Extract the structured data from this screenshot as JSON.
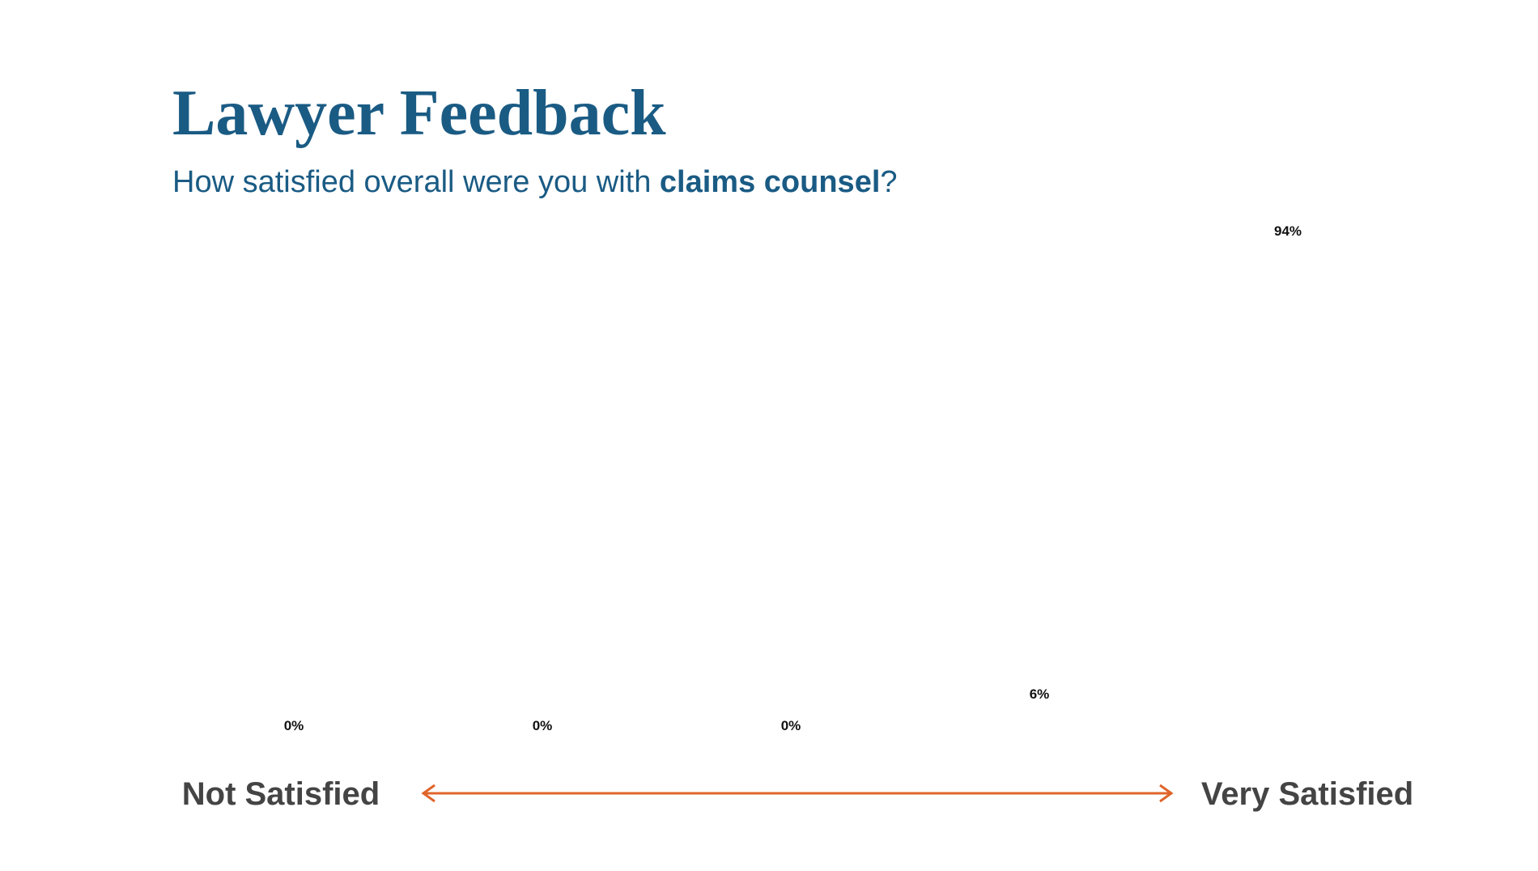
{
  "chart_data": {
    "type": "bar",
    "title": "Lawyer Feedback",
    "subtitle": [
      "How satisfied overall were you with",
      "claims counsel",
      "?"
    ],
    "categories": [
      null,
      null,
      null,
      null,
      null
    ],
    "values": [
      0,
      0,
      0,
      6,
      94
    ],
    "value_labels": [
      "0%",
      "0%",
      "0%",
      "6%",
      "94%"
    ],
    "color": "#ffffff",
    "scale_labels": {
      "low": "Not Satisfied",
      "high": "Very Satisfied"
    }
  }
}
